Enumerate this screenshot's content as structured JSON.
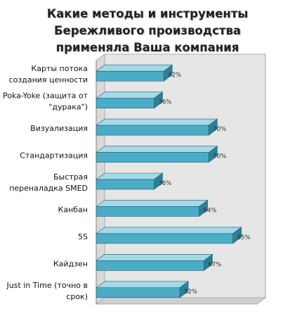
{
  "chart_data": {
    "type": "bar",
    "orientation": "horizontal",
    "title_lines": [
      "Какие методы и инструменты",
      "Бережливого производства",
      "применяла Ваша компания"
    ],
    "categories": [
      [
        "Карты потока",
        "создания ценности"
      ],
      [
        "Poka-Yoke (защита от",
        "\"дурака\")"
      ],
      [
        "Визуализация"
      ],
      [
        "Стандартизация"
      ],
      [
        "Быстрая",
        "переналадка SMED"
      ],
      [
        "Канбан"
      ],
      [
        "5S"
      ],
      [
        "Кайдзен"
      ],
      [
        "Just in Time (точно в",
        "срок)"
      ]
    ],
    "values": [
      42,
      36,
      70,
      70,
      36,
      64,
      85,
      67,
      52
    ],
    "value_labels": [
      "42%",
      "36%",
      "70%",
      "70%",
      "36%",
      "64%",
      "85%",
      "67%",
      "52%"
    ],
    "xlim": [
      0,
      100
    ],
    "grid": false,
    "legend": "none",
    "colors": {
      "bar_front": "#4bacc6",
      "bar_top": "#a5d9e7",
      "bar_right": "#2e7f96",
      "bar_stroke": "#1f5f70",
      "wall": "#e6e6e6",
      "wall_edge": "#ababab",
      "text": "#111111",
      "value_text": "#333333"
    }
  }
}
